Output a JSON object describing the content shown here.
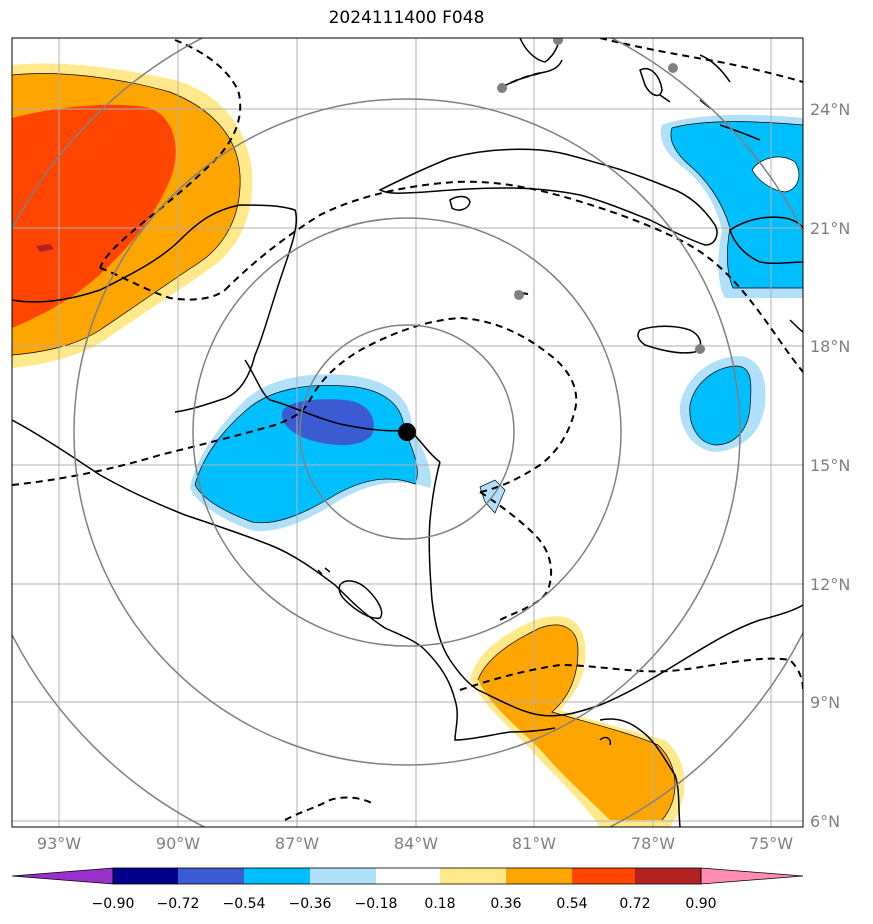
{
  "title": "2024111400 F048",
  "map": {
    "lon_ticks": [
      "93°W",
      "90°W",
      "87°W",
      "84°W",
      "81°W",
      "78°W",
      "75°W"
    ],
    "lat_ticks": [
      "24°N",
      "21°N",
      "18°N",
      "15°N",
      "12°N",
      "9°N",
      "6°N"
    ],
    "storm_center": {
      "lon": -84.2,
      "lat": 15.8
    },
    "range_rings_deg": [
      2.7,
      5.4,
      8.4,
      11.2
    ]
  },
  "colorbar": {
    "labels": [
      "−0.90",
      "−0.72",
      "−0.54",
      "−0.36",
      "−0.18",
      "0.18",
      "0.36",
      "0.54",
      "0.72",
      "0.90"
    ],
    "colors": [
      "#9932cc",
      "#00008b",
      "#3b5bd3",
      "#00bfff",
      "#b0e0fa",
      "#ffffff",
      "#ffe98a",
      "#ffa500",
      "#ff4500",
      "#b22222",
      "#ff8cb4"
    ]
  }
}
